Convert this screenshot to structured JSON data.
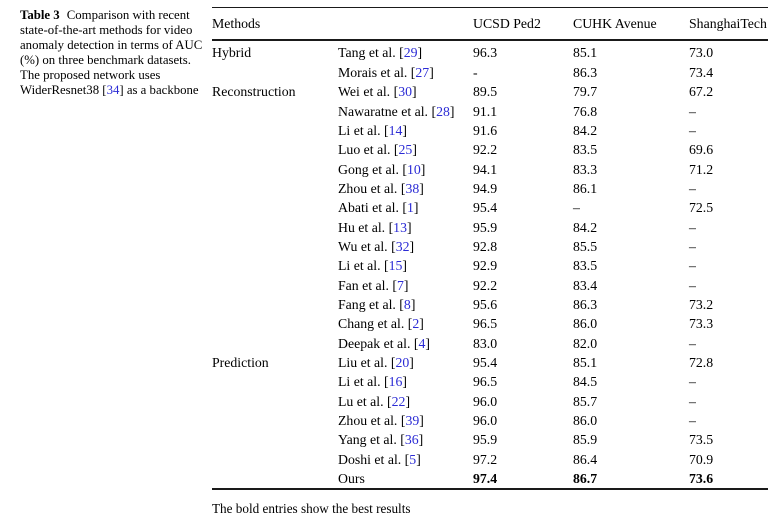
{
  "caption": {
    "label": "Table 3",
    "before": "Comparison with recent state-of-the-art methods for video anomaly detection in terms of AUC (%) on three benchmark datasets. The proposed network uses WiderResnet38 [",
    "cite": "34",
    "after": "] as a backbone"
  },
  "table": {
    "headers": [
      "Methods",
      "UCSD Ped2",
      "CUHK Avenue",
      "ShanghaiTech"
    ],
    "groups": [
      {
        "name": "Hybrid",
        "rows": [
          {
            "pre": "Tang et al. [",
            "cite": "29",
            "post": "]",
            "ucsd": "96.3",
            "cuhk": "85.1",
            "sht": "73.0",
            "bold": false
          },
          {
            "pre": "Morais et al. [",
            "cite": "27",
            "post": "]",
            "ucsd": "-",
            "cuhk": "86.3",
            "sht": "73.4",
            "bold": false
          }
        ]
      },
      {
        "name": "Reconstruction",
        "rows": [
          {
            "pre": "Wei et al. [",
            "cite": "30",
            "post": "]",
            "ucsd": "89.5",
            "cuhk": "79.7",
            "sht": "67.2",
            "bold": false
          },
          {
            "pre": "Nawaratne et al. [",
            "cite": "28",
            "post": "]",
            "ucsd": "91.1",
            "cuhk": "76.8",
            "sht": "–",
            "bold": false
          },
          {
            "pre": "Li et al. [",
            "cite": "14",
            "post": "]",
            "ucsd": "91.6",
            "cuhk": "84.2",
            "sht": "–",
            "bold": false
          },
          {
            "pre": "Luo et al. [",
            "cite": "25",
            "post": "]",
            "ucsd": "92.2",
            "cuhk": "83.5",
            "sht": "69.6",
            "bold": false
          },
          {
            "pre": "Gong et al. [",
            "cite": "10",
            "post": "]",
            "ucsd": "94.1",
            "cuhk": "83.3",
            "sht": "71.2",
            "bold": false
          },
          {
            "pre": "Zhou et al. [",
            "cite": "38",
            "post": "]",
            "ucsd": "94.9",
            "cuhk": "86.1",
            "sht": "–",
            "bold": false
          },
          {
            "pre": "Abati et al. [",
            "cite": "1",
            "post": "]",
            "ucsd": "95.4",
            "cuhk": "–",
            "sht": "72.5",
            "bold": false
          },
          {
            "pre": "Hu et al. [",
            "cite": "13",
            "post": "]",
            "ucsd": "95.9",
            "cuhk": "84.2",
            "sht": "–",
            "bold": false
          },
          {
            "pre": "Wu et al. [",
            "cite": "32",
            "post": "]",
            "ucsd": "92.8",
            "cuhk": "85.5",
            "sht": "–",
            "bold": false
          },
          {
            "pre": "Li et al. [",
            "cite": "15",
            "post": "]",
            "ucsd": "92.9",
            "cuhk": "83.5",
            "sht": "–",
            "bold": false
          },
          {
            "pre": "Fan et al. [",
            "cite": "7",
            "post": "]",
            "ucsd": "92.2",
            "cuhk": "83.4",
            "sht": "–",
            "bold": false
          },
          {
            "pre": "Fang et al. [",
            "cite": "8",
            "post": "]",
            "ucsd": "95.6",
            "cuhk": "86.3",
            "sht": "73.2",
            "bold": false
          },
          {
            "pre": "Chang et al. [",
            "cite": "2",
            "post": "]",
            "ucsd": "96.5",
            "cuhk": "86.0",
            "sht": "73.3",
            "bold": false
          },
          {
            "pre": "Deepak et al. [",
            "cite": "4",
            "post": "]",
            "ucsd": "83.0",
            "cuhk": "82.0",
            "sht": "–",
            "bold": false
          }
        ]
      },
      {
        "name": "Prediction",
        "rows": [
          {
            "pre": "Liu et al. [",
            "cite": "20",
            "post": "]",
            "ucsd": "95.4",
            "cuhk": "85.1",
            "sht": "72.8",
            "bold": false
          },
          {
            "pre": "Li et al. [",
            "cite": "16",
            "post": "]",
            "ucsd": "96.5",
            "cuhk": "84.5",
            "sht": "–",
            "bold": false
          },
          {
            "pre": "Lu et al. [",
            "cite": "22",
            "post": "]",
            "ucsd": "96.0",
            "cuhk": "85.7",
            "sht": "–",
            "bold": false
          },
          {
            "pre": "Zhou et al. [",
            "cite": "39",
            "post": "]",
            "ucsd": "96.0",
            "cuhk": "86.0",
            "sht": "–",
            "bold": false
          },
          {
            "pre": "Yang et al. [",
            "cite": "36",
            "post": "]",
            "ucsd": "95.9",
            "cuhk": "85.9",
            "sht": "73.5",
            "bold": false
          },
          {
            "pre": "Doshi et al. [",
            "cite": "5",
            "post": "]",
            "ucsd": "97.2",
            "cuhk": "86.4",
            "sht": "70.9",
            "bold": false
          },
          {
            "pre": "Ours",
            "cite": "",
            "post": "",
            "ucsd": "97.4",
            "cuhk": "86.7",
            "sht": "73.6",
            "bold": true
          }
        ]
      }
    ]
  },
  "footnote": "The bold entries show the best results",
  "colors": {
    "citation": "#2b2bd5",
    "text": "#000000",
    "rule": "#1a1a1a",
    "background": "#ffffff"
  }
}
